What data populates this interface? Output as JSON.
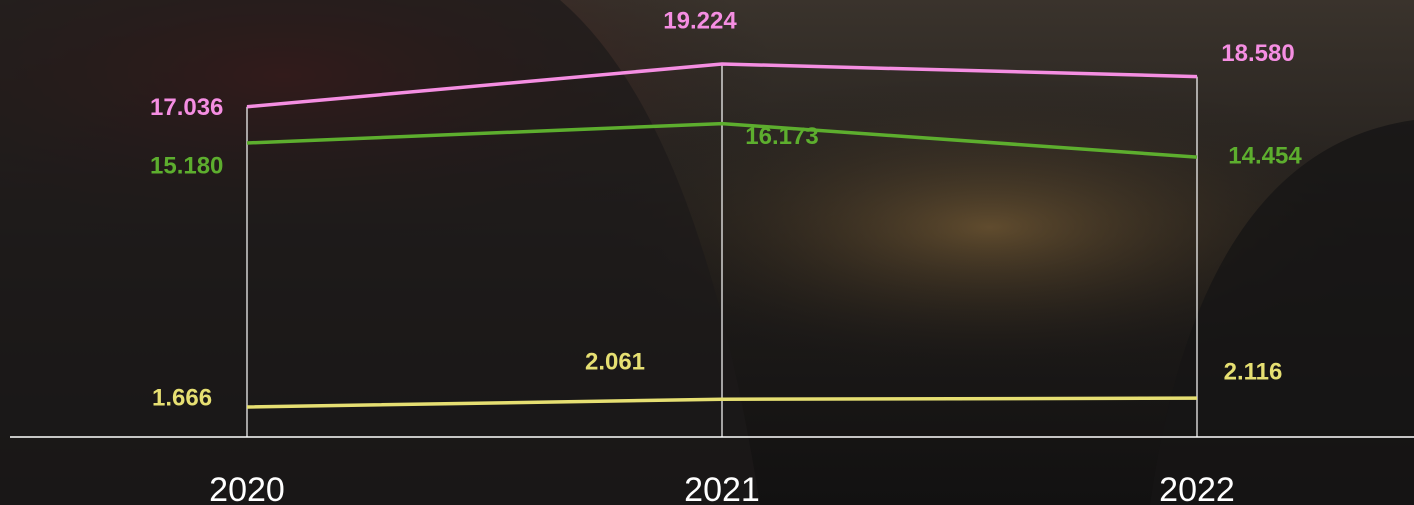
{
  "chart_data": {
    "type": "line",
    "categories": [
      "2020",
      "2021",
      "2022"
    ],
    "series": [
      {
        "color": "#f58ee2",
        "values": [
          17.036,
          19.224,
          18.58
        ],
        "value_labels": [
          "17.036",
          "19.224",
          "18.580"
        ]
      },
      {
        "color": "#5dae2e",
        "values": [
          15.18,
          16.173,
          14.454
        ],
        "value_labels": [
          "15.180",
          "16.173",
          "14.454"
        ]
      },
      {
        "color": "#e6df72",
        "values": [
          1.666,
          2.061,
          2.116
        ],
        "value_labels": [
          "1.666",
          "2.061",
          "2.116"
        ]
      }
    ],
    "ylim": [
      0,
      22.5
    ]
  }
}
